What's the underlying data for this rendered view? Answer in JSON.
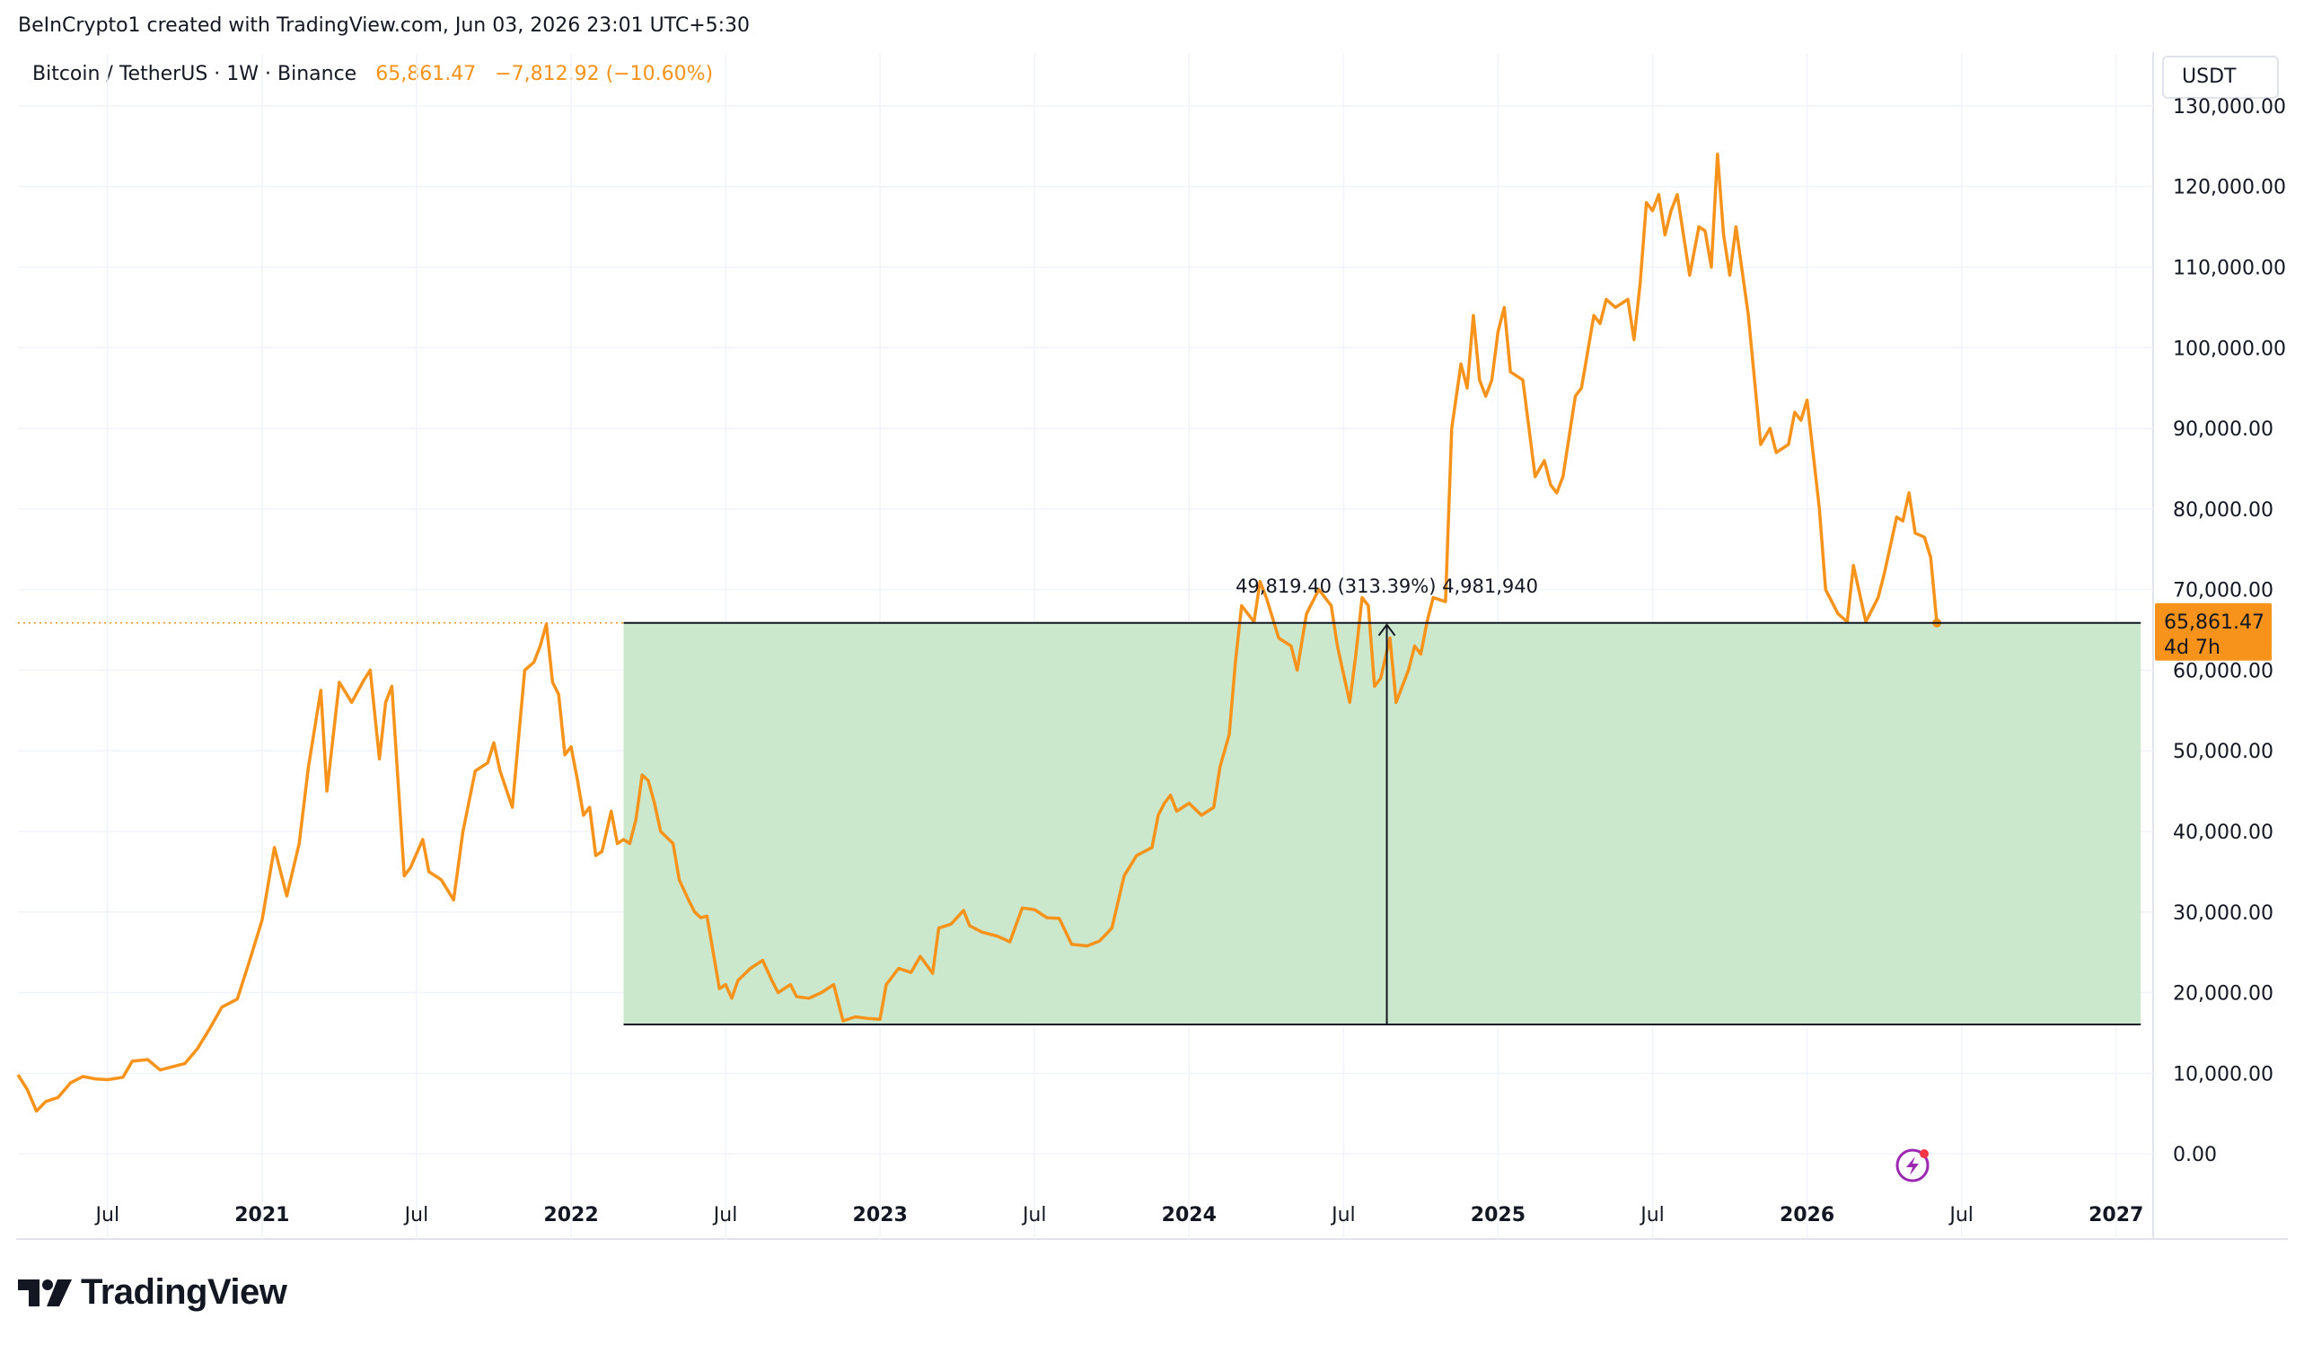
{
  "header": {
    "credit": "BeInCrypto1 created with TradingView.com, Jun 03, 2026 23:01 UTC+5:30",
    "symbol": "Bitcoin / TetherUS · 1W · Binance",
    "price": "65,861.47",
    "change": "−7,812.92 (−10.60%)"
  },
  "unit_button": "USDT",
  "brand": {
    "name": "TradingView",
    "icon": "tradingview-logo-icon"
  },
  "colors": {
    "line": "#f7931a",
    "zone": "#c8e6c9",
    "grid": "#f0f3fa",
    "price_label_bg": "#f7931a"
  },
  "price_label": {
    "value": "65,861.47",
    "countdown": "4d 7h"
  },
  "measure": {
    "text": "49,819.40 (313.39%) 4,981,940",
    "low": 16050,
    "high": 65861.47,
    "x_start": 2022.17,
    "x_end": 2027.08
  },
  "lightning_icon": "lightning-icon",
  "chart_data": {
    "type": "line",
    "title": "",
    "xlabel": "",
    "ylabel": "",
    "ylim": [
      -5000,
      132000
    ],
    "xlim": [
      2020.21,
      2027.12
    ],
    "y_ticks": [
      0,
      10000,
      20000,
      30000,
      40000,
      50000,
      60000,
      70000,
      80000,
      90000,
      100000,
      110000,
      120000,
      130000
    ],
    "y_tick_labels": [
      "0.00",
      "10,000.00",
      "20,000.00",
      "30,000.00",
      "40,000.00",
      "50,000.00",
      "60,000.00",
      "70,000.00",
      "80,000.00",
      "90,000.00",
      "100,000.00",
      "110,000.00",
      "120,000.00",
      "130,000.00"
    ],
    "x_ticks": [
      {
        "t": 2020.5,
        "label": "Jul",
        "bold": false
      },
      {
        "t": 2021.0,
        "label": "2021",
        "bold": true
      },
      {
        "t": 2021.5,
        "label": "Jul",
        "bold": false
      },
      {
        "t": 2022.0,
        "label": "2022",
        "bold": true
      },
      {
        "t": 2022.5,
        "label": "Jul",
        "bold": false
      },
      {
        "t": 2023.0,
        "label": "2023",
        "bold": true
      },
      {
        "t": 2023.5,
        "label": "Jul",
        "bold": false
      },
      {
        "t": 2024.0,
        "label": "2024",
        "bold": true
      },
      {
        "t": 2024.5,
        "label": "Jul",
        "bold": false
      },
      {
        "t": 2025.0,
        "label": "2025",
        "bold": true
      },
      {
        "t": 2025.5,
        "label": "Jul",
        "bold": false
      },
      {
        "t": 2026.0,
        "label": "2026",
        "bold": true
      },
      {
        "t": 2026.5,
        "label": "Jul",
        "bold": false
      },
      {
        "t": 2027.0,
        "label": "2027",
        "bold": true
      }
    ],
    "grid": true,
    "legend": "top-left",
    "series": [
      {
        "name": "Bitcoin / TetherUS",
        "points": [
          [
            2020.21,
            9800
          ],
          [
            2020.24,
            8000
          ],
          [
            2020.27,
            5300
          ],
          [
            2020.3,
            6500
          ],
          [
            2020.34,
            7000
          ],
          [
            2020.38,
            8800
          ],
          [
            2020.42,
            9600
          ],
          [
            2020.46,
            9300
          ],
          [
            2020.5,
            9200
          ],
          [
            2020.55,
            9500
          ],
          [
            2020.58,
            11500
          ],
          [
            2020.63,
            11700
          ],
          [
            2020.67,
            10400
          ],
          [
            2020.71,
            10800
          ],
          [
            2020.75,
            11200
          ],
          [
            2020.79,
            13000
          ],
          [
            2020.83,
            15500
          ],
          [
            2020.87,
            18200
          ],
          [
            2020.92,
            19200
          ],
          [
            2020.96,
            24000
          ],
          [
            2021.0,
            29000
          ],
          [
            2021.04,
            38000
          ],
          [
            2021.08,
            32000
          ],
          [
            2021.12,
            38500
          ],
          [
            2021.15,
            48000
          ],
          [
            2021.19,
            57500
          ],
          [
            2021.21,
            45000
          ],
          [
            2021.25,
            58500
          ],
          [
            2021.29,
            56000
          ],
          [
            2021.33,
            58800
          ],
          [
            2021.35,
            60000
          ],
          [
            2021.38,
            49000
          ],
          [
            2021.4,
            56000
          ],
          [
            2021.42,
            58000
          ],
          [
            2021.46,
            34500
          ],
          [
            2021.48,
            35500
          ],
          [
            2021.52,
            39000
          ],
          [
            2021.54,
            35000
          ],
          [
            2021.58,
            34000
          ],
          [
            2021.62,
            31500
          ],
          [
            2021.65,
            40000
          ],
          [
            2021.69,
            47500
          ],
          [
            2021.73,
            48500
          ],
          [
            2021.75,
            51000
          ],
          [
            2021.77,
            47500
          ],
          [
            2021.81,
            43000
          ],
          [
            2021.85,
            60000
          ],
          [
            2021.88,
            61000
          ],
          [
            2021.9,
            63000
          ],
          [
            2021.92,
            65700
          ],
          [
            2021.94,
            58500
          ],
          [
            2021.96,
            57000
          ],
          [
            2021.98,
            49500
          ],
          [
            2022.0,
            50500
          ],
          [
            2022.02,
            46500
          ],
          [
            2022.04,
            42000
          ],
          [
            2022.06,
            43000
          ],
          [
            2022.08,
            37000
          ],
          [
            2022.1,
            37500
          ],
          [
            2022.13,
            42500
          ],
          [
            2022.15,
            38500
          ],
          [
            2022.17,
            39000
          ],
          [
            2022.19,
            38500
          ],
          [
            2022.21,
            41500
          ],
          [
            2022.23,
            47000
          ],
          [
            2022.25,
            46300
          ],
          [
            2022.27,
            43500
          ],
          [
            2022.29,
            40000
          ],
          [
            2022.33,
            38500
          ],
          [
            2022.35,
            34000
          ],
          [
            2022.38,
            31500
          ],
          [
            2022.4,
            30000
          ],
          [
            2022.42,
            29300
          ],
          [
            2022.44,
            29500
          ],
          [
            2022.46,
            25000
          ],
          [
            2022.48,
            20500
          ],
          [
            2022.5,
            21000
          ],
          [
            2022.52,
            19300
          ],
          [
            2022.54,
            21500
          ],
          [
            2022.58,
            23000
          ],
          [
            2022.62,
            24000
          ],
          [
            2022.65,
            21500
          ],
          [
            2022.67,
            20000
          ],
          [
            2022.71,
            21000
          ],
          [
            2022.73,
            19500
          ],
          [
            2022.77,
            19300
          ],
          [
            2022.81,
            20000
          ],
          [
            2022.85,
            21000
          ],
          [
            2022.88,
            16500
          ],
          [
            2022.92,
            17000
          ],
          [
            2022.96,
            16800
          ],
          [
            2023.0,
            16700
          ],
          [
            2023.02,
            21000
          ],
          [
            2023.06,
            23000
          ],
          [
            2023.1,
            22500
          ],
          [
            2023.13,
            24500
          ],
          [
            2023.17,
            22400
          ],
          [
            2023.19,
            28000
          ],
          [
            2023.23,
            28500
          ],
          [
            2023.27,
            30200
          ],
          [
            2023.29,
            28300
          ],
          [
            2023.33,
            27500
          ],
          [
            2023.38,
            27000
          ],
          [
            2023.42,
            26300
          ],
          [
            2023.46,
            30500
          ],
          [
            2023.5,
            30300
          ],
          [
            2023.54,
            29300
          ],
          [
            2023.58,
            29200
          ],
          [
            2023.62,
            26000
          ],
          [
            2023.67,
            25800
          ],
          [
            2023.71,
            26400
          ],
          [
            2023.73,
            27200
          ],
          [
            2023.75,
            28000
          ],
          [
            2023.79,
            34500
          ],
          [
            2023.83,
            37000
          ],
          [
            2023.88,
            38000
          ],
          [
            2023.9,
            42000
          ],
          [
            2023.92,
            43500
          ],
          [
            2023.94,
            44500
          ],
          [
            2023.96,
            42500
          ],
          [
            2024.0,
            43500
          ],
          [
            2024.04,
            42000
          ],
          [
            2024.08,
            43000
          ],
          [
            2024.1,
            48000
          ],
          [
            2024.13,
            52000
          ],
          [
            2024.15,
            61000
          ],
          [
            2024.17,
            68000
          ],
          [
            2024.21,
            66000
          ],
          [
            2024.23,
            71000
          ],
          [
            2024.25,
            69000
          ],
          [
            2024.29,
            64000
          ],
          [
            2024.33,
            63000
          ],
          [
            2024.35,
            60000
          ],
          [
            2024.38,
            67000
          ],
          [
            2024.42,
            70000
          ],
          [
            2024.46,
            68000
          ],
          [
            2024.48,
            63000
          ],
          [
            2024.52,
            56000
          ],
          [
            2024.54,
            62000
          ],
          [
            2024.56,
            69000
          ],
          [
            2024.58,
            68000
          ],
          [
            2024.6,
            58000
          ],
          [
            2024.62,
            59000
          ],
          [
            2024.65,
            64000
          ],
          [
            2024.67,
            56000
          ],
          [
            2024.69,
            58000
          ],
          [
            2024.71,
            60000
          ],
          [
            2024.73,
            63000
          ],
          [
            2024.75,
            62000
          ],
          [
            2024.77,
            66000
          ],
          [
            2024.79,
            69000
          ],
          [
            2024.83,
            68500
          ],
          [
            2024.85,
            90000
          ],
          [
            2024.88,
            98000
          ],
          [
            2024.9,
            95000
          ],
          [
            2024.92,
            104000
          ],
          [
            2024.94,
            96000
          ],
          [
            2024.96,
            94000
          ],
          [
            2024.98,
            96000
          ],
          [
            2025.0,
            102000
          ],
          [
            2025.02,
            105000
          ],
          [
            2025.04,
            97000
          ],
          [
            2025.08,
            96000
          ],
          [
            2025.12,
            84000
          ],
          [
            2025.15,
            86000
          ],
          [
            2025.17,
            83000
          ],
          [
            2025.19,
            82000
          ],
          [
            2025.21,
            84000
          ],
          [
            2025.25,
            94000
          ],
          [
            2025.27,
            95000
          ],
          [
            2025.31,
            104000
          ],
          [
            2025.33,
            103000
          ],
          [
            2025.35,
            106000
          ],
          [
            2025.38,
            105000
          ],
          [
            2025.42,
            106000
          ],
          [
            2025.44,
            101000
          ],
          [
            2025.46,
            108000
          ],
          [
            2025.48,
            118000
          ],
          [
            2025.5,
            117000
          ],
          [
            2025.52,
            119000
          ],
          [
            2025.54,
            114000
          ],
          [
            2025.56,
            117000
          ],
          [
            2025.58,
            119000
          ],
          [
            2025.62,
            109000
          ],
          [
            2025.65,
            115000
          ],
          [
            2025.67,
            114500
          ],
          [
            2025.69,
            110000
          ],
          [
            2025.71,
            124000
          ],
          [
            2025.73,
            114000
          ],
          [
            2025.75,
            109000
          ],
          [
            2025.77,
            115000
          ],
          [
            2025.81,
            104000
          ],
          [
            2025.85,
            88000
          ],
          [
            2025.88,
            90000
          ],
          [
            2025.9,
            87000
          ],
          [
            2025.94,
            88000
          ],
          [
            2025.96,
            92000
          ],
          [
            2025.98,
            91000
          ],
          [
            2026.0,
            93500
          ],
          [
            2026.04,
            80000
          ],
          [
            2026.06,
            70000
          ],
          [
            2026.1,
            67000
          ],
          [
            2026.13,
            66000
          ],
          [
            2026.15,
            73000
          ],
          [
            2026.19,
            66000
          ],
          [
            2026.23,
            69000
          ],
          [
            2026.25,
            72000
          ],
          [
            2026.29,
            79000
          ],
          [
            2026.31,
            78500
          ],
          [
            2026.33,
            82000
          ],
          [
            2026.35,
            77000
          ],
          [
            2026.38,
            76500
          ],
          [
            2026.4,
            74000
          ],
          [
            2026.42,
            65861
          ]
        ]
      }
    ]
  }
}
